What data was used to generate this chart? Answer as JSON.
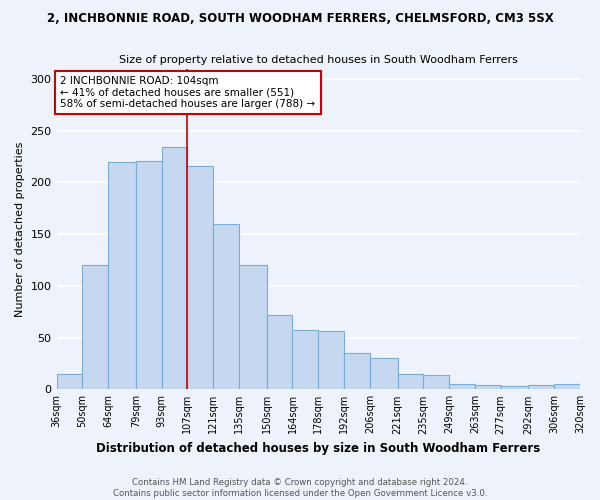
{
  "title": "2, INCHBONNIE ROAD, SOUTH WOODHAM FERRERS, CHELMSFORD, CM3 5SX",
  "subtitle": "Size of property relative to detached houses in South Woodham Ferrers",
  "xlabel": "Distribution of detached houses by size in South Woodham Ferrers",
  "ylabel": "Number of detached properties",
  "footer_line1": "Contains HM Land Registry data © Crown copyright and database right 2024.",
  "footer_line2": "Contains public sector information licensed under the Open Government Licence v3.0.",
  "categories": [
    "36sqm",
    "50sqm",
    "64sqm",
    "79sqm",
    "93sqm",
    "107sqm",
    "121sqm",
    "135sqm",
    "150sqm",
    "164sqm",
    "178sqm",
    "192sqm",
    "206sqm",
    "221sqm",
    "235sqm",
    "249sqm",
    "263sqm",
    "277sqm",
    "292sqm",
    "306sqm",
    "320sqm"
  ],
  "values": [
    15,
    120,
    220,
    221,
    234,
    216,
    160,
    120,
    72,
    57,
    56,
    35,
    30,
    15,
    14,
    5,
    4,
    3,
    4,
    5
  ],
  "bar_color": "#c5d8f0",
  "bar_edge_color": "#7badd4",
  "annotation_box_text": "2 INCHBONNIE ROAD: 104sqm\n← 41% of detached houses are smaller (551)\n58% of semi-detached houses are larger (788) →",
  "vline_x_index": 5,
  "vline_color": "#cc0000",
  "box_edge_color": "#cc0000",
  "ylim": [
    0,
    310
  ],
  "yticks": [
    0,
    50,
    100,
    150,
    200,
    250,
    300
  ],
  "background_color": "#eef2fa",
  "grid_color": "#ffffff",
  "bin_edges": [
    36,
    50,
    64,
    79,
    93,
    107,
    121,
    135,
    150,
    164,
    178,
    192,
    206,
    221,
    235,
    249,
    263,
    277,
    292,
    306,
    320
  ]
}
